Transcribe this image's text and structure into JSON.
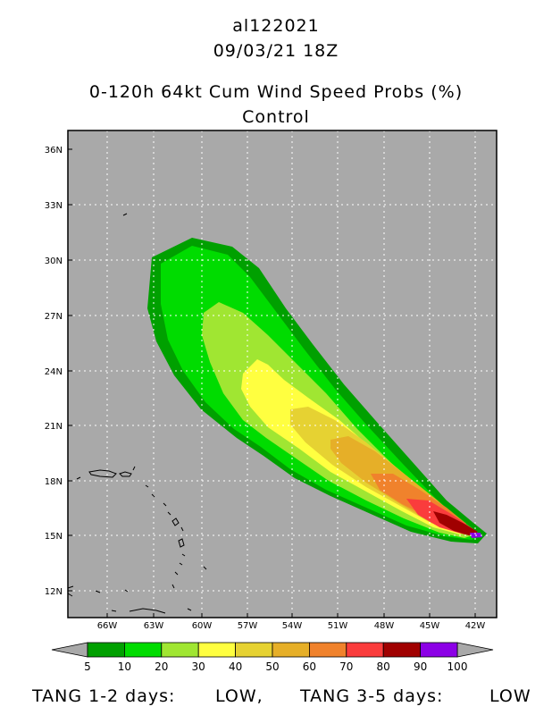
{
  "header": {
    "storm_id": "al122021",
    "datetime": "09/03/21 18Z",
    "product": "0-120h 64kt Cum Wind Speed Probs (%)",
    "member": "Control"
  },
  "map": {
    "lat_labels": [
      "36N",
      "33N",
      "30N",
      "27N",
      "24N",
      "21N",
      "18N",
      "15N",
      "12N"
    ],
    "lon_labels": [
      "66W",
      "63W",
      "60W",
      "57W",
      "54W",
      "51W",
      "48W",
      "45W",
      "42W"
    ],
    "colors": {
      "background": "#a9a9a9",
      "gridline": "#ffffff",
      "coast": "#000000"
    }
  },
  "colorbar": {
    "tick_labels": [
      "5",
      "10",
      "20",
      "30",
      "40",
      "50",
      "60",
      "70",
      "80",
      "90",
      "100"
    ],
    "colors": [
      "#00a000",
      "#00dc00",
      "#a0e632",
      "#ffff40",
      "#e6d232",
      "#e6af28",
      "#f0822c",
      "#fa3c3c",
      "#a00000",
      "#8c00e6"
    ],
    "end_color": "#a9a9a9"
  },
  "footer": {
    "tang_12_label": "TANG 1-2 days:",
    "tang_12_value": "LOW,",
    "tang_35_label": "TANG 3-5 days:",
    "tang_35_value": "LOW"
  }
}
